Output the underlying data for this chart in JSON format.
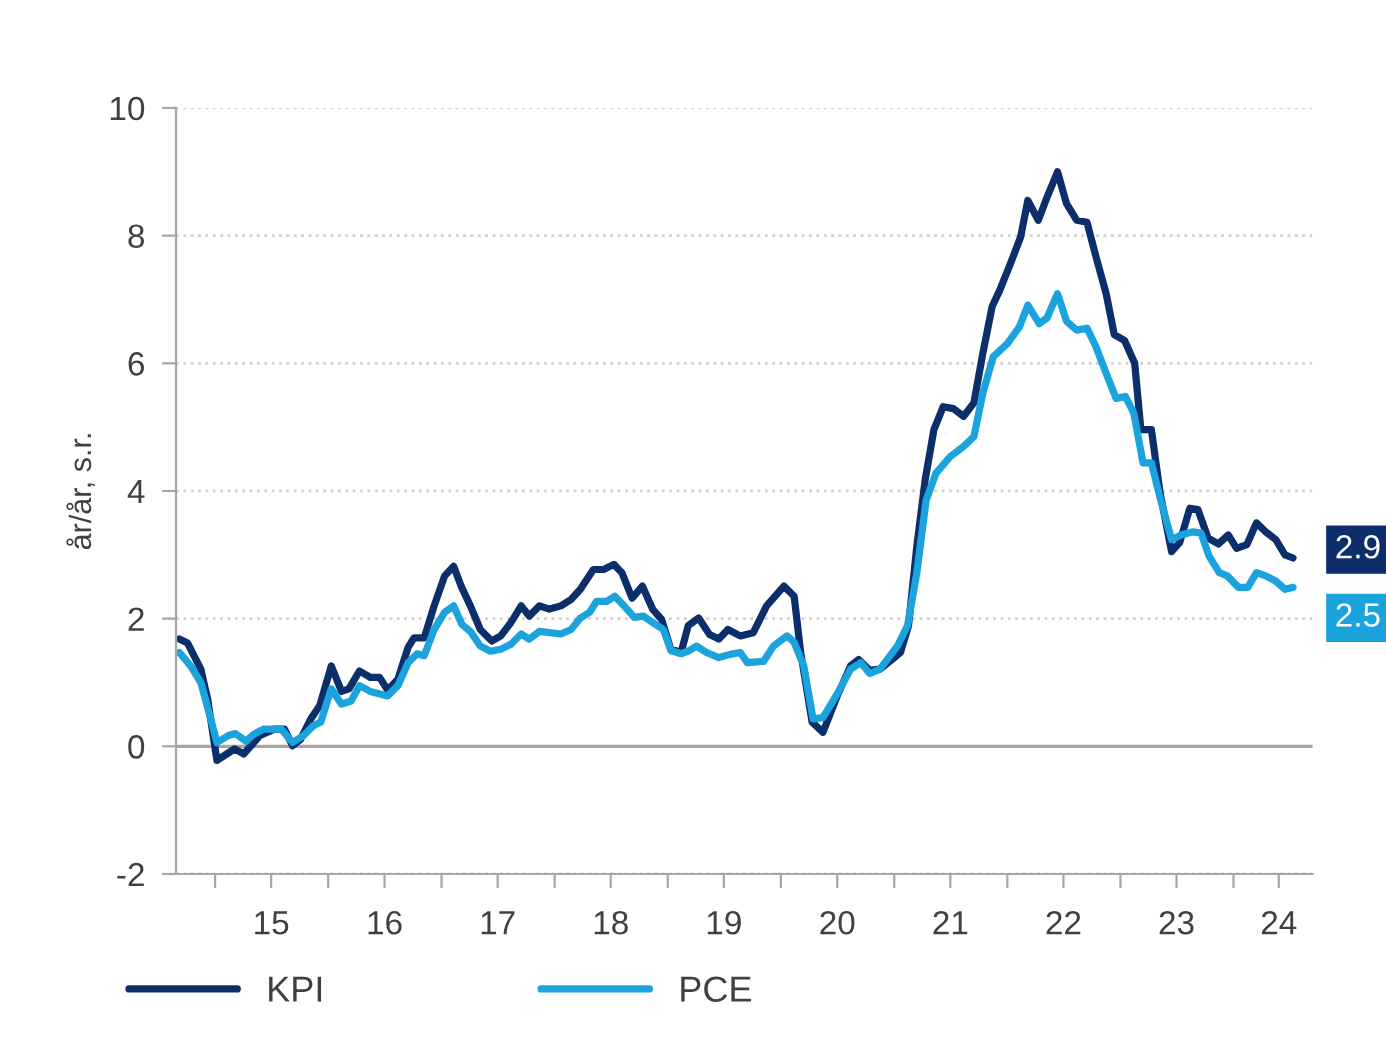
{
  "chart_data": {
    "type": "line",
    "ylabel": "år/år, s.r.",
    "xlim": [
      "2014-08-28",
      "2024-09-12"
    ],
    "ylim": [
      -2,
      10
    ],
    "yticks": [
      -2,
      0,
      2,
      4,
      6,
      8,
      10
    ],
    "xticks": [
      {
        "value": "2015-01-01",
        "label": null
      },
      {
        "value": "2016-01-01",
        "label": null
      },
      {
        "value": "2017-01-01",
        "label": null
      },
      {
        "value": "2018-01-01",
        "label": null
      },
      {
        "value": "2019-01-01",
        "label": null
      },
      {
        "value": "2020-01-01",
        "label": null
      },
      {
        "value": "2021-01-01",
        "label": null
      },
      {
        "value": "2022-01-01",
        "label": null
      },
      {
        "value": "2023-01-01",
        "label": null
      },
      {
        "value": "2024-01-01",
        "label": null
      },
      {
        "value": "2015-07-01",
        "label": "15"
      },
      {
        "value": "2016-07-01",
        "label": "16"
      },
      {
        "value": "2017-07-01",
        "label": "17"
      },
      {
        "value": "2018-07-01",
        "label": "18"
      },
      {
        "value": "2019-07-01",
        "label": "19"
      },
      {
        "value": "2020-07-01",
        "label": "20"
      },
      {
        "value": "2021-07-01",
        "label": "21"
      },
      {
        "value": "2022-07-01",
        "label": "22"
      },
      {
        "value": "2023-07-01",
        "label": "23"
      },
      {
        "value": "2024-05-26",
        "label": "24"
      }
    ],
    "grid": "y",
    "legend": "bottom",
    "line_style": "solid",
    "ref_lines": [
      {
        "axis": "y",
        "value": 0,
        "color": "#a6a6a6"
      }
    ],
    "series": [
      {
        "name": "KPI",
        "color": "#0c2f6b",
        "x": [
          "2014-09-08",
          "2014-10-04",
          "2014-11-16",
          "2014-12-08",
          "2015-01-07",
          "2015-03-05",
          "2015-04-04",
          "2015-05-26",
          "2015-07-11",
          "2015-08-13",
          "2015-09-08",
          "2015-10-04",
          "2015-11-06",
          "2015-12-05",
          "2016-01-11",
          "2016-02-13",
          "2016-03-08",
          "2016-04-11",
          "2016-05-16",
          "2016-06-15",
          "2016-07-11",
          "2016-08-13",
          "2016-09-15",
          "2016-10-04",
          "2016-11-06",
          "2016-12-08",
          "2017-01-11",
          "2017-02-09",
          "2017-03-05",
          "2017-04-04",
          "2017-05-06",
          "2017-06-12",
          "2017-07-11",
          "2017-08-13",
          "2017-09-15",
          "2017-10-11",
          "2017-11-13",
          "2017-12-15",
          "2018-01-21",
          "2018-02-23",
          "2018-03-25",
          "2018-05-06",
          "2018-06-08",
          "2018-07-11",
          "2018-08-06",
          "2018-09-08",
          "2018-10-11",
          "2018-11-13",
          "2018-12-12",
          "2019-01-11",
          "2019-02-13",
          "2019-03-08",
          "2019-04-11",
          "2019-05-16",
          "2019-06-15",
          "2019-07-14",
          "2019-08-23",
          "2019-10-04",
          "2019-11-16",
          "2020-01-11",
          "2020-02-13",
          "2020-03-05",
          "2020-04-11",
          "2020-05-16",
          "2020-07-01",
          "2020-08-13",
          "2020-09-08",
          "2020-10-14",
          "2020-11-16",
          "2020-12-25",
          "2021-01-21",
          "2021-02-16",
          "2021-03-15",
          "2021-04-11",
          "2021-05-09",
          "2021-06-08",
          "2021-07-11",
          "2021-08-13",
          "2021-09-15",
          "2021-10-14",
          "2021-11-13",
          "2021-12-08",
          "2022-01-11",
          "2022-02-13",
          "2022-03-08",
          "2022-04-11",
          "2022-05-09",
          "2022-06-12",
          "2022-07-11",
          "2022-08-13",
          "2022-09-15",
          "2022-10-14",
          "2022-11-16",
          "2022-12-12",
          "2023-01-14",
          "2023-02-16",
          "2023-03-08",
          "2023-04-11",
          "2023-05-09",
          "2023-06-15",
          "2023-07-11",
          "2023-08-13",
          "2023-09-08",
          "2023-10-11",
          "2023-11-13",
          "2023-12-15",
          "2024-01-11",
          "2024-02-13",
          "2024-03-15",
          "2024-04-14",
          "2024-05-16",
          "2024-06-15",
          "2024-07-11"
        ],
        "values": [
          1.68,
          1.62,
          1.21,
          0.74,
          -0.22,
          -0.04,
          -0.12,
          0.17,
          0.27,
          0.27,
          0.01,
          0.11,
          0.43,
          0.64,
          1.26,
          0.86,
          0.9,
          1.18,
          1.08,
          1.08,
          0.88,
          1.05,
          1.55,
          1.7,
          1.7,
          2.2,
          2.67,
          2.82,
          2.51,
          2.2,
          1.83,
          1.65,
          1.73,
          1.94,
          2.2,
          2.04,
          2.2,
          2.15,
          2.2,
          2.3,
          2.46,
          2.77,
          2.77,
          2.85,
          2.72,
          2.32,
          2.51,
          2.15,
          1.99,
          1.52,
          1.47,
          1.89,
          2.01,
          1.75,
          1.68,
          1.83,
          1.73,
          1.78,
          2.2,
          2.51,
          2.35,
          1.47,
          0.38,
          0.22,
          0.79,
          1.26,
          1.36,
          1.19,
          1.21,
          1.36,
          1.47,
          1.89,
          3.14,
          4.18,
          4.96,
          5.32,
          5.29,
          5.17,
          5.38,
          6.16,
          6.89,
          7.15,
          7.56,
          7.98,
          8.55,
          8.24,
          8.6,
          9.0,
          8.5,
          8.24,
          8.21,
          7.67,
          7.09,
          6.45,
          6.36,
          6.0,
          4.96,
          4.96,
          3.97,
          3.05,
          3.19,
          3.73,
          3.71,
          3.26,
          3.17,
          3.31,
          3.1,
          3.16,
          3.5,
          3.36,
          3.24,
          3.0,
          2.95
        ],
        "value_labels": [
          null,
          null,
          null,
          null,
          null,
          null,
          null,
          null,
          null,
          null,
          null,
          null,
          null,
          null,
          null,
          null,
          null,
          null,
          null,
          null,
          null,
          null,
          null,
          null,
          null,
          null,
          null,
          null,
          null,
          null,
          null,
          null,
          null,
          null,
          null,
          null,
          null,
          null,
          null,
          null,
          null,
          null,
          null,
          null,
          null,
          null,
          null,
          null,
          null,
          null,
          null,
          null,
          null,
          null,
          null,
          null,
          null,
          null,
          null,
          null,
          null,
          null,
          null,
          null,
          null,
          null,
          null,
          null,
          null,
          null,
          null,
          null,
          null,
          null,
          null,
          null,
          null,
          null,
          null,
          null,
          null,
          null,
          null,
          null,
          null,
          null,
          null,
          null,
          null,
          null,
          null,
          null,
          null,
          null,
          null,
          null,
          null,
          null,
          null,
          null,
          null,
          null,
          null,
          null,
          null,
          null,
          null,
          null,
          null,
          null,
          null,
          null,
          "2.9"
        ]
      },
      {
        "name": "PCE",
        "color": "#1aa3dd",
        "x": [
          "2014-09-08",
          "2014-10-14",
          "2014-11-16",
          "2014-12-18",
          "2015-01-07",
          "2015-02-13",
          "2015-03-08",
          "2015-04-11",
          "2015-05-06",
          "2015-06-08",
          "2015-08-03",
          "2015-09-08",
          "2015-10-14",
          "2015-11-13",
          "2015-12-08",
          "2016-01-11",
          "2016-02-13",
          "2016-03-15",
          "2016-04-11",
          "2016-05-16",
          "2016-07-11",
          "2016-08-13",
          "2016-09-15",
          "2016-10-14",
          "2016-11-06",
          "2016-12-08",
          "2017-01-11",
          "2017-02-09",
          "2017-03-08",
          "2017-04-04",
          "2017-05-06",
          "2017-06-08",
          "2017-07-11",
          "2017-08-13",
          "2017-09-15",
          "2017-10-11",
          "2017-11-13",
          "2018-01-21",
          "2018-02-23",
          "2018-03-25",
          "2018-04-24",
          "2018-05-16",
          "2018-06-18",
          "2018-07-14",
          "2018-08-13",
          "2018-09-15",
          "2018-10-14",
          "2018-11-13",
          "2018-12-18",
          "2019-01-11",
          "2019-02-13",
          "2019-03-08",
          "2019-04-04",
          "2019-05-06",
          "2019-06-15",
          "2019-07-21",
          "2019-08-23",
          "2019-09-15",
          "2019-11-06",
          "2019-12-08",
          "2020-01-21",
          "2020-02-13",
          "2020-03-15",
          "2020-04-14",
          "2020-05-16",
          "2020-07-01",
          "2020-08-13",
          "2020-09-15",
          "2020-10-14",
          "2020-11-16",
          "2021-01-11",
          "2021-02-13",
          "2021-03-15",
          "2021-04-14",
          "2021-05-16",
          "2021-07-01",
          "2021-08-13",
          "2021-09-15",
          "2021-10-14",
          "2021-11-16",
          "2022-01-01",
          "2022-02-09",
          "2022-03-08",
          "2022-04-14",
          "2022-05-09",
          "2022-06-12",
          "2022-07-11",
          "2022-08-13",
          "2022-09-15",
          "2022-10-14",
          "2022-11-16",
          "2022-12-18",
          "2023-01-17",
          "2023-02-13",
          "2023-03-15",
          "2023-04-11",
          "2023-05-09",
          "2023-06-15",
          "2023-07-21",
          "2023-08-23",
          "2023-09-18",
          "2023-10-14",
          "2023-11-16",
          "2023-12-12",
          "2024-01-17",
          "2024-02-16",
          "2024-03-15",
          "2024-04-14",
          "2024-05-16",
          "2024-06-15",
          "2024-07-11"
        ],
        "values": [
          1.47,
          1.26,
          1.0,
          0.43,
          0.06,
          0.17,
          0.2,
          0.08,
          0.19,
          0.27,
          0.27,
          0.06,
          0.17,
          0.32,
          0.38,
          0.9,
          0.66,
          0.71,
          0.95,
          0.86,
          0.79,
          0.95,
          1.31,
          1.45,
          1.42,
          1.83,
          2.1,
          2.2,
          1.91,
          1.8,
          1.57,
          1.49,
          1.52,
          1.6,
          1.76,
          1.68,
          1.8,
          1.76,
          1.83,
          2.01,
          2.1,
          2.27,
          2.27,
          2.35,
          2.2,
          2.02,
          2.04,
          1.94,
          1.83,
          1.5,
          1.45,
          1.49,
          1.57,
          1.47,
          1.39,
          1.44,
          1.47,
          1.31,
          1.33,
          1.57,
          1.73,
          1.63,
          1.26,
          0.43,
          0.45,
          0.82,
          1.21,
          1.31,
          1.14,
          1.21,
          1.57,
          1.89,
          2.72,
          3.86,
          4.28,
          4.54,
          4.7,
          4.85,
          5.53,
          6.1,
          6.31,
          6.57,
          6.91,
          6.62,
          6.71,
          7.09,
          6.66,
          6.52,
          6.55,
          6.26,
          5.84,
          5.45,
          5.48,
          5.22,
          4.44,
          4.44,
          3.89,
          3.24,
          3.32,
          3.36,
          3.34,
          2.98,
          2.72,
          2.67,
          2.49,
          2.49,
          2.72,
          2.67,
          2.59,
          2.46,
          2.49
        ],
        "value_labels": [
          null,
          null,
          null,
          null,
          null,
          null,
          null,
          null,
          null,
          null,
          null,
          null,
          null,
          null,
          null,
          null,
          null,
          null,
          null,
          null,
          null,
          null,
          null,
          null,
          null,
          null,
          null,
          null,
          null,
          null,
          null,
          null,
          null,
          null,
          null,
          null,
          null,
          null,
          null,
          null,
          null,
          null,
          null,
          null,
          null,
          null,
          null,
          null,
          null,
          null,
          null,
          null,
          null,
          null,
          null,
          null,
          null,
          null,
          null,
          null,
          null,
          null,
          null,
          null,
          null,
          null,
          null,
          null,
          null,
          null,
          null,
          null,
          null,
          null,
          null,
          null,
          null,
          null,
          null,
          null,
          null,
          null,
          null,
          null,
          null,
          null,
          null,
          null,
          null,
          null,
          null,
          null,
          null,
          null,
          null,
          null,
          null,
          null,
          null,
          null,
          null,
          null,
          null,
          null,
          null,
          null,
          null,
          null,
          null,
          null,
          "2.5"
        ]
      }
    ]
  }
}
